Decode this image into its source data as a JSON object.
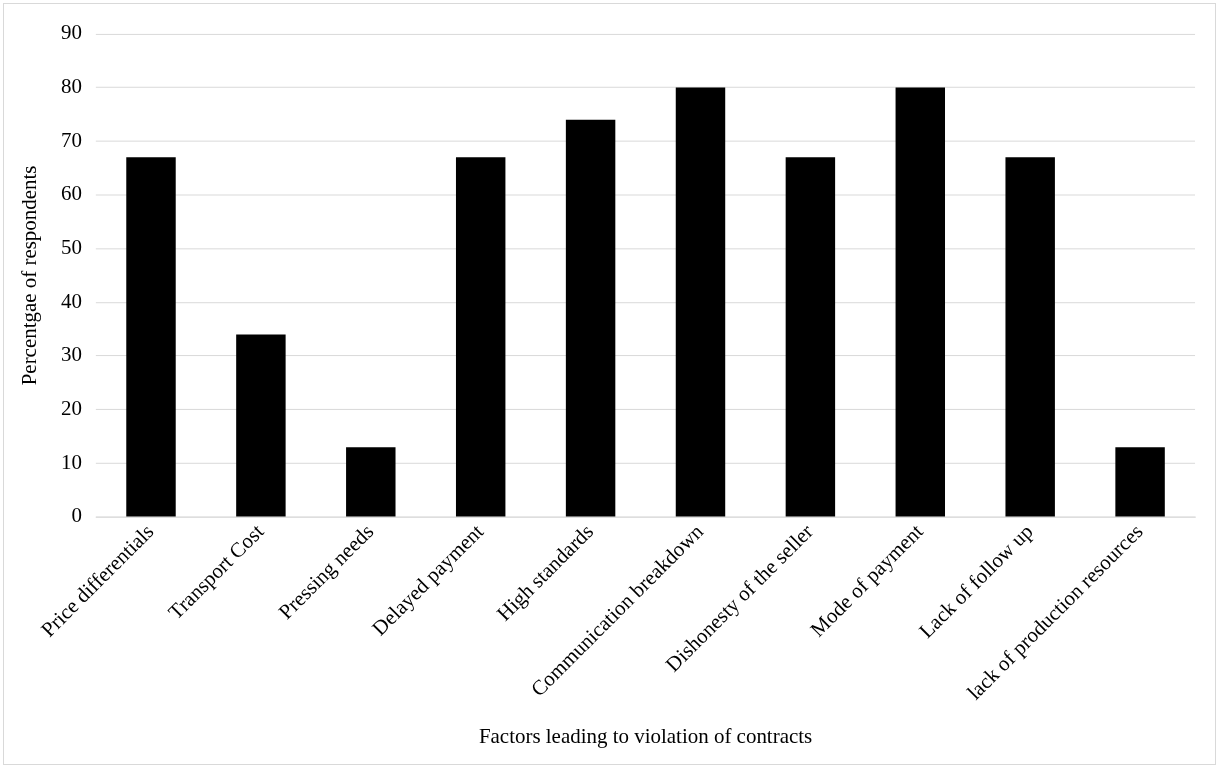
{
  "chart_data": {
    "type": "bar",
    "xlabel": "Factors leading to violation of contracts",
    "ylabel": "Percentgae of respondents",
    "categories": [
      "Price differentials",
      "Transport Cost",
      "Pressing needs",
      "Delayed payment",
      "High standards",
      "Communication breakdown",
      "Dishonesty of the seller",
      "Mode of payment",
      "Lack of follow up",
      "lack of production resources"
    ],
    "values": [
      67,
      34,
      13,
      67,
      74,
      80,
      67,
      80,
      67,
      13
    ],
    "color": "#000000",
    "ylim": [
      0,
      90
    ],
    "yticks": [
      0,
      10,
      20,
      30,
      40,
      50,
      60,
      70,
      80,
      90
    ],
    "grid": "y"
  }
}
